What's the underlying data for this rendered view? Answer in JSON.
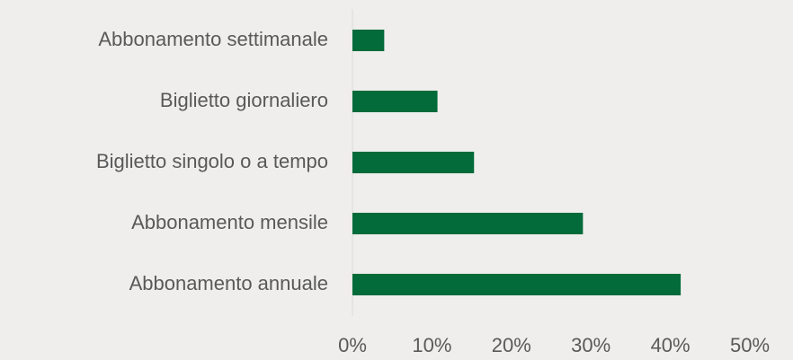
{
  "chart_data": {
    "type": "bar",
    "orientation": "horizontal",
    "categories": [
      "Abbonamento settimanale",
      "Biglietto giornaliero",
      "Biglietto singolo o a tempo",
      "Abbonamento mensile",
      "Abbonamento annuale"
    ],
    "values": [
      4.0,
      10.7,
      15.3,
      29.0,
      41.3
    ],
    "color": "#036b3a",
    "xlim": [
      0,
      50
    ],
    "xticks": [
      {
        "value": 0,
        "label": "0%"
      },
      {
        "value": 10,
        "label": "10%"
      },
      {
        "value": 20,
        "label": "20%"
      },
      {
        "value": 30,
        "label": "30%"
      },
      {
        "value": 40,
        "label": "40%"
      },
      {
        "value": 50,
        "label": "50%"
      }
    ],
    "grid": false
  }
}
